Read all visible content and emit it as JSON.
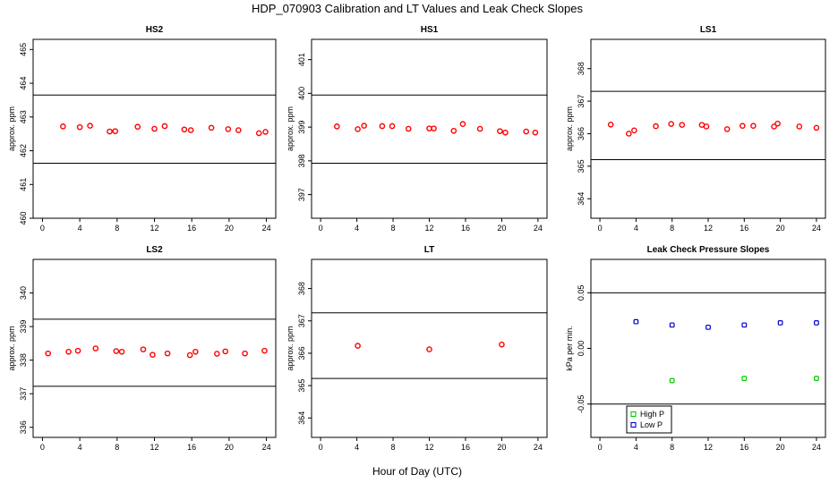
{
  "figure": {
    "title": "HDP_070903  Calibration and LT Values and Leak Check Slopes",
    "xlabel": "Hour of Day (UTC)"
  },
  "chart_data": [
    {
      "type": "scatter",
      "title": "HS2",
      "ylabel": "approx. ppm",
      "xlim": [
        -1,
        25
      ],
      "ylim": [
        460,
        465.3
      ],
      "xticks": [
        0,
        4,
        8,
        12,
        16,
        20,
        24
      ],
      "yticks": [
        460,
        461,
        462,
        463,
        464,
        465
      ],
      "hlines": [
        463.65,
        461.63
      ],
      "series": [
        {
          "color": "#ff0000",
          "x": [
            2.2,
            4.0,
            5.1,
            7.2,
            7.8,
            10.2,
            12.0,
            13.1,
            15.2,
            15.9,
            18.1,
            19.9,
            21.0,
            23.2,
            23.9
          ],
          "y": [
            462.72,
            462.7,
            462.74,
            462.57,
            462.58,
            462.71,
            462.65,
            462.73,
            462.63,
            462.61,
            462.68,
            462.64,
            462.61,
            462.52,
            462.56
          ]
        }
      ]
    },
    {
      "type": "scatter",
      "title": "HS1",
      "ylabel": "approx. ppm",
      "xlim": [
        -1,
        25
      ],
      "ylim": [
        396.3,
        401.6
      ],
      "xticks": [
        0,
        4,
        8,
        12,
        16,
        20,
        24
      ],
      "yticks": [
        397,
        398,
        399,
        400,
        401
      ],
      "hlines": [
        399.95,
        397.93
      ],
      "series": [
        {
          "color": "#ff0000",
          "x": [
            1.8,
            4.1,
            4.8,
            6.8,
            7.9,
            9.7,
            12.0,
            12.5,
            14.7,
            15.7,
            17.6,
            19.8,
            20.4,
            22.7,
            23.7
          ],
          "y": [
            399.02,
            398.94,
            399.04,
            399.03,
            399.03,
            398.95,
            398.96,
            398.96,
            398.89,
            399.09,
            398.95,
            398.88,
            398.84,
            398.87,
            398.84
          ]
        }
      ]
    },
    {
      "type": "scatter",
      "title": "LS1",
      "ylabel": "approx. ppm",
      "xlim": [
        -1,
        25
      ],
      "ylim": [
        363.4,
        368.9
      ],
      "xticks": [
        0,
        4,
        8,
        12,
        16,
        20,
        24
      ],
      "yticks": [
        364,
        365,
        366,
        367,
        368
      ],
      "hlines": [
        367.3,
        365.2
      ],
      "series": [
        {
          "color": "#ff0000",
          "x": [
            1.2,
            3.2,
            3.8,
            6.2,
            7.9,
            9.1,
            11.3,
            11.8,
            14.1,
            15.8,
            17.0,
            19.3,
            19.7,
            22.1,
            24.0
          ],
          "y": [
            366.28,
            366.0,
            366.1,
            366.23,
            366.3,
            366.27,
            366.27,
            366.22,
            366.14,
            366.24,
            366.24,
            366.22,
            366.31,
            366.22,
            366.18
          ]
        }
      ]
    },
    {
      "type": "scatter",
      "title": "LS2",
      "ylabel": "approx. ppm",
      "xlim": [
        -1,
        25
      ],
      "ylim": [
        335.7,
        341.0
      ],
      "xticks": [
        0,
        4,
        8,
        12,
        16,
        20,
        24
      ],
      "yticks": [
        336,
        337,
        338,
        339,
        340
      ],
      "hlines": [
        339.22,
        337.22
      ],
      "series": [
        {
          "color": "#ff0000",
          "x": [
            0.6,
            2.8,
            3.8,
            5.7,
            7.9,
            8.5,
            10.8,
            11.8,
            13.4,
            15.8,
            16.4,
            18.7,
            19.6,
            21.7,
            23.8
          ],
          "y": [
            338.2,
            338.25,
            338.28,
            338.35,
            338.27,
            338.25,
            338.32,
            338.16,
            338.2,
            338.15,
            338.25,
            338.19,
            338.26,
            338.2,
            338.28
          ]
        }
      ]
    },
    {
      "type": "scatter",
      "title": "LT",
      "ylabel": "approx. ppm",
      "xlim": [
        -1,
        25
      ],
      "ylim": [
        363.4,
        368.9
      ],
      "xticks": [
        0,
        4,
        8,
        12,
        16,
        20,
        24
      ],
      "yticks": [
        364,
        365,
        366,
        367,
        368
      ],
      "hlines": [
        367.25,
        365.22
      ],
      "series": [
        {
          "color": "#ff0000",
          "x": [
            4.1,
            12.0,
            20.0
          ],
          "y": [
            366.23,
            366.12,
            366.27
          ]
        }
      ]
    },
    {
      "type": "scatter",
      "title": "Leak Check Pressure Slopes",
      "ylabel": "kPa per min.",
      "xlim": [
        -1,
        25
      ],
      "ylim": [
        -0.08,
        0.08
      ],
      "xticks": [
        0,
        4,
        8,
        12,
        16,
        20,
        24
      ],
      "yticks": [
        -0.05,
        0.0,
        0.05
      ],
      "ytick_labels": [
        "-0.05",
        "0.00",
        "0.05"
      ],
      "hlines": [
        0.05,
        -0.05
      ],
      "legend": {
        "placement": "bottom-left"
      },
      "series": [
        {
          "name": "High P",
          "color": "#00cc00",
          "x": [
            8.0,
            16.0,
            24.0
          ],
          "y": [
            -0.029,
            -0.027,
            -0.027
          ]
        },
        {
          "name": "Low P",
          "color": "#0000cc",
          "x": [
            4.0,
            8.0,
            12.0,
            16.0,
            20.0,
            24.0
          ],
          "y": [
            0.024,
            0.021,
            0.019,
            0.021,
            0.023,
            0.023
          ]
        }
      ]
    }
  ]
}
